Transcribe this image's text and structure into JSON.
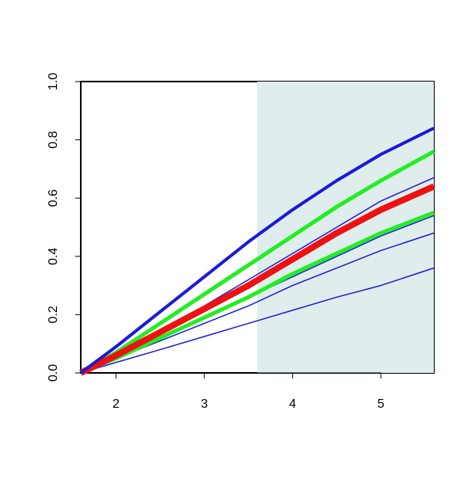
{
  "chart_data": {
    "type": "line",
    "x": [
      1.6,
      2,
      2.5,
      3,
      3.5,
      4,
      4.5,
      5,
      5.6
    ],
    "xlim": [
      1.6,
      5.6
    ],
    "ylim": [
      0,
      1
    ],
    "xticks": [
      2,
      3,
      4,
      5
    ],
    "yticks": [
      {
        "value": 0,
        "label": "0.0"
      },
      0.2,
      0.4,
      0.6,
      0.8,
      {
        "value": 1,
        "label": "1.0"
      }
    ],
    "shade_xlim": [
      3.6,
      5.6
    ],
    "shade_color": "#e0eded",
    "series": [
      {
        "color": "#1a1adb",
        "line_width": 1.5,
        "values": [
          0,
          0.036,
          0.08,
          0.125,
          0.17,
          0.215,
          0.26,
          0.3,
          0.36
        ]
      },
      {
        "color": "#1a1adb",
        "line_width": 1.5,
        "values": [
          0,
          0.05,
          0.11,
          0.17,
          0.23,
          0.3,
          0.36,
          0.42,
          0.48
        ]
      },
      {
        "color": "#1a1adb",
        "line_width": 1.5,
        "values": [
          0,
          0.05,
          0.12,
          0.19,
          0.26,
          0.33,
          0.4,
          0.47,
          0.54
        ]
      },
      {
        "color": "#1a1adb",
        "line_width": 1.5,
        "values": [
          0,
          0.06,
          0.14,
          0.23,
          0.32,
          0.41,
          0.5,
          0.59,
          0.67
        ]
      },
      {
        "color": "#22ee22",
        "line_width": 5,
        "values": [
          0,
          0.05,
          0.12,
          0.19,
          0.26,
          0.34,
          0.41,
          0.48,
          0.55
        ]
      },
      {
        "color": "#22ee22",
        "line_width": 5,
        "values": [
          0,
          0.07,
          0.17,
          0.27,
          0.37,
          0.47,
          0.57,
          0.66,
          0.76
        ]
      },
      {
        "color": "#ee1111",
        "line_width": 8,
        "values": [
          0,
          0.06,
          0.14,
          0.22,
          0.3,
          0.39,
          0.48,
          0.56,
          0.64
        ]
      },
      {
        "color": "#1a1adb",
        "line_width": 4,
        "values": [
          0,
          0.09,
          0.21,
          0.33,
          0.45,
          0.56,
          0.66,
          0.75,
          0.84
        ]
      }
    ]
  }
}
